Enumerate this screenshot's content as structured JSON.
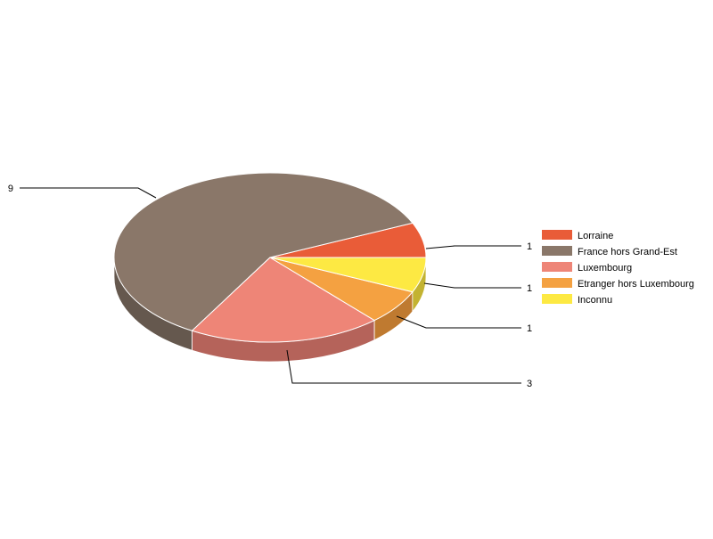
{
  "chart_data": {
    "type": "pie",
    "style": "3d",
    "title": "",
    "legend_position": "right",
    "slices": [
      {
        "label": "Lorraine",
        "value": 1,
        "color": "#e95c38",
        "side_color": "#b4472b"
      },
      {
        "label": "France hors Grand-Est",
        "value": 9,
        "color": "#8a7769",
        "side_color": "#65584e"
      },
      {
        "label": "Luxembourg",
        "value": 3,
        "color": "#ee8577",
        "side_color": "#b5635a"
      },
      {
        "label": "Etranger hors Luxembourg",
        "value": 1,
        "color": "#f4a141",
        "side_color": "#bf7a30"
      },
      {
        "label": "Inconnu",
        "value": 1,
        "color": "#fde943",
        "side_color": "#c3b331"
      }
    ]
  }
}
